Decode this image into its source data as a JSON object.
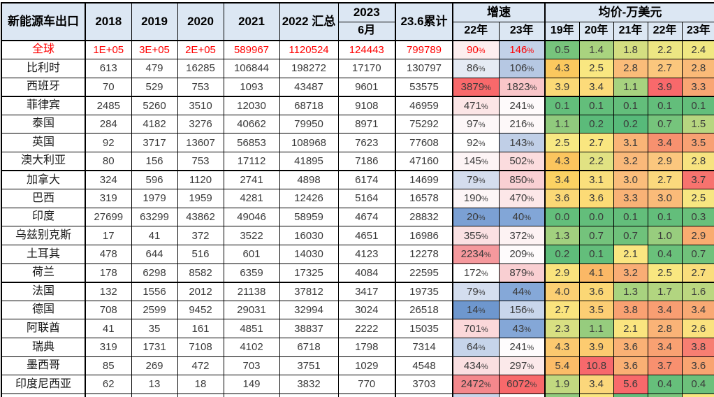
{
  "chart_data": {
    "type": "table",
    "title": "新能源车出口",
    "header": {
      "years": [
        "2018",
        "2019",
        "2020",
        "2021"
      ],
      "col_2022": "2022 汇总",
      "col_2023_top": "2023",
      "col_2023_bottom": "6月",
      "col_cumulative": "23.6累计",
      "growth_label": "增速",
      "growth_subs": [
        "22年",
        "23年"
      ],
      "price_label": "均价-万美元",
      "price_subs": [
        "19年",
        "20年",
        "21年",
        "22年",
        "23年"
      ]
    },
    "rows": [
      {
        "name": "全球",
        "red": true,
        "group_end": false,
        "values": [
          "1E+05",
          "3E+05",
          "2E+05",
          "589967",
          "1120524",
          "124443",
          "799789"
        ],
        "growth": [
          {
            "v": "90%",
            "bg": "#FDEEEF"
          },
          {
            "v": "146%",
            "bg": "#C3D2E8"
          }
        ],
        "prices": [
          {
            "v": "0.5",
            "bg": "#77C47C"
          },
          {
            "v": "1.4",
            "bg": "#A9D37F"
          },
          {
            "v": "1.8",
            "bg": "#D4DE81"
          },
          {
            "v": "2.2",
            "bg": "#EDE683"
          },
          {
            "v": "2.4",
            "bg": "#F0E782"
          }
        ]
      },
      {
        "name": "比利时",
        "red": false,
        "group_end": false,
        "values": [
          "613",
          "479",
          "16285",
          "106844",
          "198272",
          "17170",
          "130797"
        ],
        "growth": [
          {
            "v": "86%",
            "bg": "#E5EBF4"
          },
          {
            "v": "106%",
            "bg": "#B6C8E3"
          }
        ],
        "prices": [
          {
            "v": "4.3",
            "bg": "#FBC85E"
          },
          {
            "v": "2.5",
            "bg": "#F9E781"
          },
          {
            "v": "2.8",
            "bg": "#FABC79"
          },
          {
            "v": "2.7",
            "bg": "#FBC77D"
          },
          {
            "v": "2.8",
            "bg": "#FABA78"
          }
        ]
      },
      {
        "name": "西班牙",
        "red": false,
        "group_end": true,
        "values": [
          "70",
          "529",
          "753",
          "1093",
          "43487",
          "9601",
          "53575"
        ],
        "growth": [
          {
            "v": "3879%",
            "bg": "#F8696B"
          },
          {
            "v": "1823%",
            "bg": "#F9C6C9"
          }
        ],
        "prices": [
          {
            "v": "3.9",
            "bg": "#FBD976"
          },
          {
            "v": "3.4",
            "bg": "#FCDB7A"
          },
          {
            "v": "1.1",
            "bg": "#A7D27F"
          },
          {
            "v": "3.9",
            "bg": "#F8696B"
          },
          {
            "v": "3.3",
            "bg": "#F9A673"
          }
        ]
      },
      {
        "name": "菲律宾",
        "red": false,
        "group_end": false,
        "values": [
          "2485",
          "5260",
          "3510",
          "12030",
          "68718",
          "9108",
          "46959"
        ],
        "growth": [
          {
            "v": "471%",
            "bg": "#FCE5E6"
          },
          {
            "v": "241%",
            "bg": "#FEFAFB"
          }
        ],
        "prices": [
          {
            "v": "0.1",
            "bg": "#63BE7B"
          },
          {
            "v": "0.1",
            "bg": "#63BE7B"
          },
          {
            "v": "0.1",
            "bg": "#63BE7B"
          },
          {
            "v": "0.1",
            "bg": "#63BE7B"
          },
          {
            "v": "0.1",
            "bg": "#63BE7B"
          }
        ]
      },
      {
        "name": "泰国",
        "red": false,
        "group_end": false,
        "values": [
          "284",
          "4182",
          "3276",
          "40662",
          "79950",
          "8971",
          "75292"
        ],
        "growth": [
          {
            "v": "97%",
            "bg": "#FDF7F8"
          },
          {
            "v": "216%",
            "bg": "#FDF8F9"
          }
        ],
        "prices": [
          {
            "v": "1.1",
            "bg": "#90CA7D"
          },
          {
            "v": "0.2",
            "bg": "#5BBB7A"
          },
          {
            "v": "0.2",
            "bg": "#57BA7A"
          },
          {
            "v": "0.7",
            "bg": "#76C47C"
          },
          {
            "v": "1.5",
            "bg": "#B7D680"
          }
        ]
      },
      {
        "name": "英国",
        "red": false,
        "group_end": false,
        "values": [
          "92",
          "3717",
          "13607",
          "56853",
          "108968",
          "7623",
          "77608"
        ],
        "growth": [
          {
            "v": "92%",
            "bg": "#FFFFFF"
          },
          {
            "v": "143%",
            "bg": "#C0CFE7"
          }
        ],
        "prices": [
          {
            "v": "2.5",
            "bg": "#F7E983"
          },
          {
            "v": "2.7",
            "bg": "#FAE680"
          },
          {
            "v": "3.1",
            "bg": "#F9B477"
          },
          {
            "v": "3.4",
            "bg": "#F7916F"
          },
          {
            "v": "3.5",
            "bg": "#F8A173"
          }
        ]
      },
      {
        "name": "澳大利亚",
        "red": false,
        "group_end": true,
        "values": [
          "80",
          "156",
          "753",
          "17112",
          "41895",
          "7186",
          "47160"
        ],
        "growth": [
          {
            "v": "145%",
            "bg": "#FDF4F5"
          },
          {
            "v": "502%",
            "bg": "#FBDCDE"
          }
        ],
        "prices": [
          {
            "v": "4.3",
            "bg": "#FBC55E"
          },
          {
            "v": "2.2",
            "bg": "#E1E283"
          },
          {
            "v": "3.2",
            "bg": "#FAB97A"
          },
          {
            "v": "2.9",
            "bg": "#FBC77E"
          },
          {
            "v": "2.8",
            "bg": "#F7E380"
          }
        ]
      },
      {
        "name": "加拿大",
        "red": false,
        "group_end": false,
        "values": [
          "324",
          "596",
          "1120",
          "2741",
          "4898",
          "6174",
          "14699"
        ],
        "growth": [
          {
            "v": "79%",
            "bg": "#D4DDEE"
          },
          {
            "v": "850%",
            "bg": "#F9D0D3"
          }
        ],
        "prices": [
          {
            "v": "3.4",
            "bg": "#FBD263"
          },
          {
            "v": "3.1",
            "bg": "#FADF7C"
          },
          {
            "v": "3.0",
            "bg": "#FABD7B"
          },
          {
            "v": "2.7",
            "bg": "#FBD97D"
          },
          {
            "v": "3.7",
            "bg": "#F7736E"
          }
        ]
      },
      {
        "name": "巴西",
        "red": false,
        "group_end": false,
        "values": [
          "319",
          "1979",
          "1959",
          "4281",
          "12426",
          "5164",
          "16578"
        ],
        "growth": [
          {
            "v": "190%",
            "bg": "#FDF6F7"
          },
          {
            "v": "470%",
            "bg": "#FCE7E8"
          }
        ],
        "prices": [
          {
            "v": "3.6",
            "bg": "#FBD876"
          },
          {
            "v": "3.6",
            "bg": "#FCDB76"
          },
          {
            "v": "3.3",
            "bg": "#F9B276"
          },
          {
            "v": "3.0",
            "bg": "#FABB79"
          },
          {
            "v": "2.5",
            "bg": "#F7E681"
          }
        ]
      },
      {
        "name": "印度",
        "red": false,
        "group_end": false,
        "values": [
          "27699",
          "63299",
          "43862",
          "49046",
          "58959",
          "4674",
          "28832"
        ],
        "growth": [
          {
            "v": "20%",
            "bg": "#7BA0D4"
          },
          {
            "v": "40%",
            "bg": "#82A6D7"
          }
        ],
        "prices": [
          {
            "v": "0.0",
            "bg": "#63BE7B"
          },
          {
            "v": "0.0",
            "bg": "#63BE7B"
          },
          {
            "v": "0.1",
            "bg": "#63BE7B"
          },
          {
            "v": "0.1",
            "bg": "#63BE7B"
          },
          {
            "v": "0.3",
            "bg": "#69C07B"
          }
        ]
      },
      {
        "name": "乌兹别克斯",
        "red": false,
        "group_end": false,
        "values": [
          "17",
          "41",
          "372",
          "3522",
          "16030",
          "4651",
          "16986"
        ],
        "growth": [
          {
            "v": "355%",
            "bg": "#FBE1E3"
          },
          {
            "v": "372%",
            "bg": "#FDF2F3"
          }
        ],
        "prices": [
          {
            "v": "1.3",
            "bg": "#A2D07F"
          },
          {
            "v": "0.7",
            "bg": "#74C37C"
          },
          {
            "v": "0.7",
            "bg": "#6FC27B"
          },
          {
            "v": "1.0",
            "bg": "#98CD7E"
          },
          {
            "v": "2.9",
            "bg": "#F9AC70"
          }
        ]
      },
      {
        "name": "土耳其",
        "red": false,
        "group_end": false,
        "values": [
          "478",
          "644",
          "516",
          "601",
          "14030",
          "4123",
          "12278"
        ],
        "growth": [
          {
            "v": "2234%",
            "bg": "#F5999D"
          },
          {
            "v": "209%",
            "bg": "#FEFBFC"
          }
        ],
        "prices": [
          {
            "v": "0.2",
            "bg": "#5FBC7A"
          },
          {
            "v": "0.1",
            "bg": "#63BE7B"
          },
          {
            "v": "2.1",
            "bg": "#FAE681"
          },
          {
            "v": "0.4",
            "bg": "#6AC17B"
          },
          {
            "v": "0.7",
            "bg": "#70C27B"
          }
        ]
      },
      {
        "name": "荷兰",
        "red": false,
        "group_end": true,
        "values": [
          "178",
          "6298",
          "8582",
          "6359",
          "17325",
          "4084",
          "22595"
        ],
        "growth": [
          {
            "v": "172%",
            "bg": "#FFFFFF"
          },
          {
            "v": "879%",
            "bg": "#F9CFD2"
          }
        ],
        "prices": [
          {
            "v": "2.9",
            "bg": "#FAE37D"
          },
          {
            "v": "4.1",
            "bg": "#FBB866"
          },
          {
            "v": "3.2",
            "bg": "#F9AD75"
          },
          {
            "v": "2.5",
            "bg": "#F9E780"
          },
          {
            "v": "2.7",
            "bg": "#FADE7C"
          }
        ]
      },
      {
        "name": "法国",
        "red": false,
        "group_end": false,
        "values": [
          "132",
          "1556",
          "2012",
          "21138",
          "37812",
          "3417",
          "19735"
        ],
        "growth": [
          {
            "v": "79%",
            "bg": "#D4DEEF"
          },
          {
            "v": "44%",
            "bg": "#85A8D8"
          }
        ],
        "prices": [
          {
            "v": "4.0",
            "bg": "#FBCF73"
          },
          {
            "v": "3.6",
            "bg": "#FBD775"
          },
          {
            "v": "1.3",
            "bg": "#A8D37F"
          },
          {
            "v": "1.7",
            "bg": "#B2D580"
          },
          {
            "v": "1.6",
            "bg": "#BBD780"
          }
        ]
      },
      {
        "name": "德国",
        "red": false,
        "group_end": false,
        "values": [
          "708",
          "2599",
          "9452",
          "29031",
          "32994",
          "3024",
          "26518"
        ],
        "growth": [
          {
            "v": "14%",
            "bg": "#6E97CE"
          },
          {
            "v": "156%",
            "bg": "#C9D6EB"
          }
        ],
        "prices": [
          {
            "v": "2.7",
            "bg": "#FAE47E"
          },
          {
            "v": "3.5",
            "bg": "#FCCE74"
          },
          {
            "v": "3.8",
            "bg": "#F9A172"
          },
          {
            "v": "3.4",
            "bg": "#F89E72"
          },
          {
            "v": "3.4",
            "bg": "#F9A974"
          }
        ]
      },
      {
        "name": "阿联酋",
        "red": false,
        "group_end": false,
        "values": [
          "41",
          "35",
          "161",
          "4851",
          "38837",
          "2222",
          "15035"
        ],
        "growth": [
          {
            "v": "701%",
            "bg": "#FBD8DA"
          },
          {
            "v": "43%",
            "bg": "#84A7D7"
          }
        ],
        "prices": [
          {
            "v": "2.3",
            "bg": "#D8E082"
          },
          {
            "v": "1.1",
            "bg": "#96CC7E"
          },
          {
            "v": "2.1",
            "bg": "#FAE57F"
          },
          {
            "v": "2.8",
            "bg": "#FAB377"
          },
          {
            "v": "2.6",
            "bg": "#FAE27E"
          }
        ]
      },
      {
        "name": "瑞典",
        "red": false,
        "group_end": false,
        "values": [
          "319",
          "1731",
          "7108",
          "4102",
          "6718",
          "1798",
          "7314"
        ],
        "growth": [
          {
            "v": "64%",
            "bg": "#C6D4EA"
          },
          {
            "v": "241%",
            "bg": "#FEFCFD"
          }
        ],
        "prices": [
          {
            "v": "4.3",
            "bg": "#FBC96F"
          },
          {
            "v": "3.9",
            "bg": "#FCCB70"
          },
          {
            "v": "3.6",
            "bg": "#FAB175"
          },
          {
            "v": "3.4",
            "bg": "#F9A172"
          },
          {
            "v": "3.8",
            "bg": "#F77E72"
          }
        ]
      },
      {
        "name": "墨西哥",
        "red": false,
        "group_end": false,
        "values": [
          "85",
          "269",
          "472",
          "703",
          "3751",
          "1029",
          "4548"
        ],
        "growth": [
          {
            "v": "434%",
            "bg": "#FADFE1"
          },
          {
            "v": "297%",
            "bg": "#FBE9EA"
          }
        ],
        "prices": [
          {
            "v": "5.4",
            "bg": "#FBBC68"
          },
          {
            "v": "10.8",
            "bg": "#F7696C"
          },
          {
            "v": "3.6",
            "bg": "#FAB074"
          },
          {
            "v": "3.7",
            "bg": "#F8906F"
          },
          {
            "v": "3.6",
            "bg": "#F9A471"
          }
        ]
      },
      {
        "name": "印度尼西亚",
        "red": false,
        "group_end": false,
        "values": [
          "62",
          "13",
          "18",
          "149",
          "3832",
          "770",
          "3703"
        ],
        "growth": [
          {
            "v": "2472%",
            "bg": "#F4888C"
          },
          {
            "v": "6072%",
            "bg": "#F8696B"
          }
        ],
        "prices": [
          {
            "v": "1.9",
            "bg": "#C1D880"
          },
          {
            "v": "3.4",
            "bg": "#FBD77B"
          },
          {
            "v": "5.6",
            "bg": "#F8696B"
          },
          {
            "v": "0.4",
            "bg": "#66BF7B"
          },
          {
            "v": "0.4",
            "bg": "#6CC17B"
          }
        ]
      }
    ],
    "partial_row": {
      "growth_bg": [
        "#C9D5EA",
        "#FFFFFF"
      ],
      "price_bg": [
        "#8FCA7D",
        "#FAE681",
        "#63BE7B",
        "#7BC57C",
        "#FAE681"
      ]
    },
    "style": {
      "header_bg": "#DCE7F3",
      "border_color": "#000000",
      "global_row_text": "#FF0000",
      "value_text": "#3A3A3A",
      "scale_min_green": "#63BE7B",
      "scale_mid_yellow": "#FFEB84",
      "scale_max_red": "#F8696B",
      "growth_scale_blue": "#5A8AC6"
    }
  }
}
